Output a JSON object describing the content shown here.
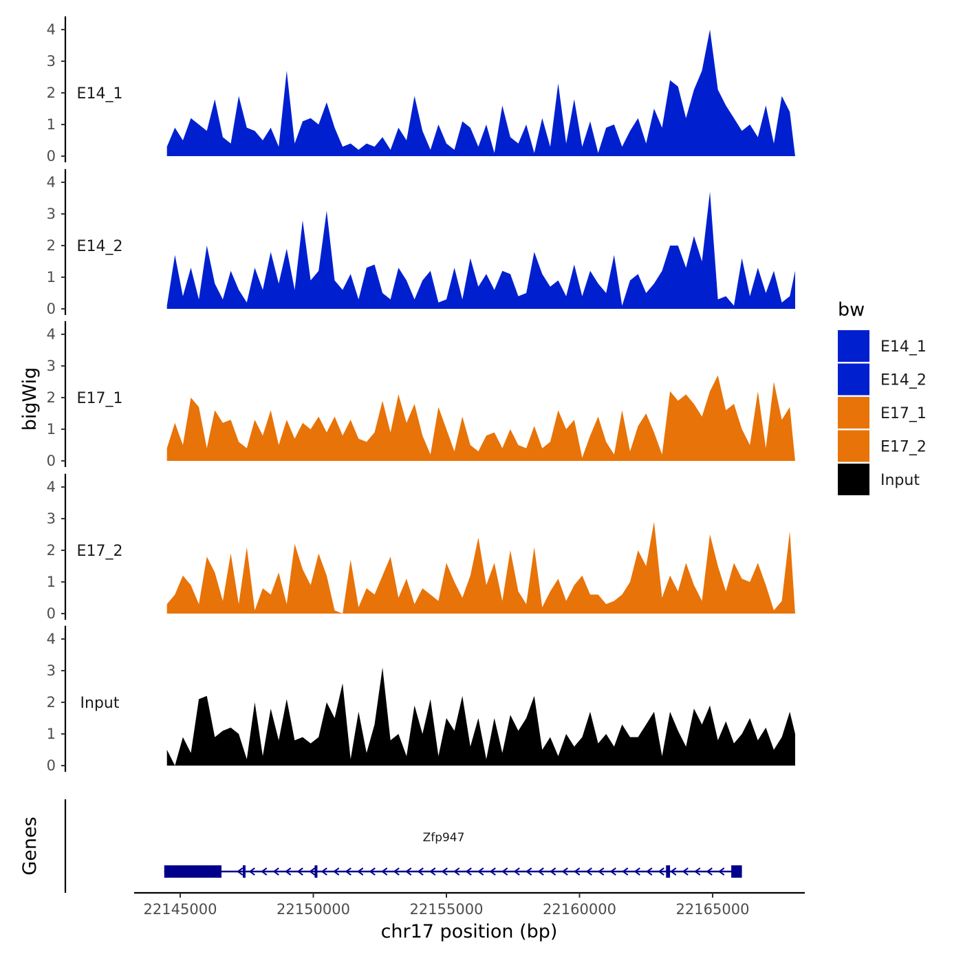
{
  "chart_data": {
    "type": "area",
    "ylabel": "bigWig",
    "xlabel": "chr17 position (bp)",
    "genes_label": "Genes",
    "xlim": [
      22143000,
      22169000
    ],
    "ylim": [
      0,
      4.2
    ],
    "xticks": [
      22145000,
      22150000,
      22155000,
      22160000,
      22165000
    ],
    "xtick_labels": [
      "22145000",
      "22150000",
      "22155000",
      "22160000",
      "22165000"
    ],
    "yticks": [
      0,
      1,
      2,
      3,
      4
    ],
    "ytick_labels": [
      "0",
      "1",
      "2",
      "3",
      "4"
    ],
    "legend": {
      "title": "bw",
      "position": "right",
      "entries": [
        {
          "label": "E14_1",
          "color": "#0020d0"
        },
        {
          "label": "E14_2",
          "color": "#0020d0"
        },
        {
          "label": "E17_1",
          "color": "#e87308"
        },
        {
          "label": "E17_2",
          "color": "#e87308"
        },
        {
          "label": "Input",
          "color": "#000000"
        }
      ]
    },
    "series": [
      {
        "name": "E14_1",
        "color": "#0020d0",
        "x": [
          22144500,
          22144800,
          22145100,
          22145400,
          22145700,
          22146000,
          22146300,
          22146600,
          22146900,
          22147200,
          22147500,
          22147800,
          22148100,
          22148400,
          22148700,
          22149000,
          22149300,
          22149600,
          22149900,
          22150200,
          22150500,
          22150800,
          22151100,
          22151400,
          22151700,
          22152000,
          22152300,
          22152600,
          22152900,
          22153200,
          22153500,
          22153800,
          22154100,
          22154400,
          22154700,
          22155000,
          22155300,
          22155600,
          22155900,
          22156200,
          22156500,
          22156800,
          22157100,
          22157400,
          22157700,
          22158000,
          22158300,
          22158600,
          22158900,
          22159200,
          22159500,
          22159800,
          22160100,
          22160400,
          22160700,
          22161000,
          22161300,
          22161600,
          22161900,
          22162200,
          22162500,
          22162800,
          22163100,
          22163400,
          22163700,
          22164000,
          22164300,
          22164600,
          22164900,
          22165200,
          22165500,
          22165800,
          22166100,
          22166400,
          22166700,
          22167000,
          22167300,
          22167600,
          22167900,
          22168100
        ],
        "values": [
          0.3,
          0.9,
          0.5,
          1.2,
          1.0,
          0.8,
          1.8,
          0.6,
          0.4,
          1.9,
          0.9,
          0.8,
          0.5,
          0.9,
          0.3,
          2.7,
          0.4,
          1.1,
          1.2,
          1.0,
          1.7,
          0.9,
          0.3,
          0.4,
          0.2,
          0.4,
          0.3,
          0.6,
          0.2,
          0.9,
          0.5,
          1.9,
          0.8,
          0.2,
          1.0,
          0.4,
          0.2,
          1.1,
          0.9,
          0.3,
          1.0,
          0.1,
          1.6,
          0.6,
          0.4,
          1.0,
          0.1,
          1.2,
          0.3,
          2.3,
          0.4,
          1.8,
          0.3,
          1.1,
          0.1,
          0.9,
          1.0,
          0.3,
          0.8,
          1.2,
          0.4,
          1.5,
          0.9,
          2.4,
          2.2,
          1.2,
          2.1,
          2.7,
          4.0,
          2.1,
          1.6,
          1.2,
          0.8,
          1.0,
          0.6,
          1.6,
          0.4,
          1.9,
          1.4,
          0.0
        ]
      },
      {
        "name": "E14_2",
        "color": "#0020d0",
        "x": [
          22144500,
          22144800,
          22145100,
          22145400,
          22145700,
          22146000,
          22146300,
          22146600,
          22146900,
          22147200,
          22147500,
          22147800,
          22148100,
          22148400,
          22148700,
          22149000,
          22149300,
          22149600,
          22149900,
          22150200,
          22150500,
          22150800,
          22151100,
          22151400,
          22151700,
          22152000,
          22152300,
          22152600,
          22152900,
          22153200,
          22153500,
          22153800,
          22154100,
          22154400,
          22154700,
          22155000,
          22155300,
          22155600,
          22155900,
          22156200,
          22156500,
          22156800,
          22157100,
          22157400,
          22157700,
          22158000,
          22158300,
          22158600,
          22158900,
          22159200,
          22159500,
          22159800,
          22160100,
          22160400,
          22160700,
          22161000,
          22161300,
          22161600,
          22161900,
          22162200,
          22162500,
          22162800,
          22163100,
          22163400,
          22163700,
          22164000,
          22164300,
          22164600,
          22164900,
          22165200,
          22165500,
          22165800,
          22166100,
          22166400,
          22166700,
          22167000,
          22167300,
          22167600,
          22167900,
          22168100
        ],
        "values": [
          0.1,
          1.7,
          0.4,
          1.3,
          0.3,
          2.0,
          0.8,
          0.3,
          1.2,
          0.6,
          0.2,
          1.3,
          0.6,
          1.8,
          0.8,
          1.9,
          0.6,
          2.8,
          0.9,
          1.2,
          3.1,
          0.9,
          0.6,
          1.1,
          0.3,
          1.3,
          1.4,
          0.5,
          0.3,
          1.3,
          0.9,
          0.3,
          0.9,
          1.2,
          0.2,
          0.3,
          1.3,
          0.3,
          1.6,
          0.7,
          1.1,
          0.6,
          1.2,
          1.1,
          0.4,
          0.5,
          1.8,
          1.1,
          0.7,
          0.9,
          0.4,
          1.4,
          0.4,
          1.2,
          0.8,
          0.5,
          1.7,
          0.1,
          0.9,
          1.1,
          0.5,
          0.8,
          1.2,
          2.0,
          2.0,
          1.3,
          2.3,
          1.5,
          3.7,
          0.3,
          0.4,
          0.1,
          1.6,
          0.4,
          1.3,
          0.5,
          1.2,
          0.2,
          0.4,
          1.2
        ]
      },
      {
        "name": "E17_1",
        "color": "#e87308",
        "x": [
          22144500,
          22144800,
          22145100,
          22145400,
          22145700,
          22146000,
          22146300,
          22146600,
          22146900,
          22147200,
          22147500,
          22147800,
          22148100,
          22148400,
          22148700,
          22149000,
          22149300,
          22149600,
          22149900,
          22150200,
          22150500,
          22150800,
          22151100,
          22151400,
          22151700,
          22152000,
          22152300,
          22152600,
          22152900,
          22153200,
          22153500,
          22153800,
          22154100,
          22154400,
          22154700,
          22155000,
          22155300,
          22155600,
          22155900,
          22156200,
          22156500,
          22156800,
          22157100,
          22157400,
          22157700,
          22158000,
          22158300,
          22158600,
          22158900,
          22159200,
          22159500,
          22159800,
          22160100,
          22160400,
          22160700,
          22161000,
          22161300,
          22161600,
          22161900,
          22162200,
          22162500,
          22162800,
          22163100,
          22163400,
          22163700,
          22164000,
          22164300,
          22164600,
          22164900,
          22165200,
          22165500,
          22165800,
          22166100,
          22166400,
          22166700,
          22167000,
          22167300,
          22167600,
          22167900,
          22168100
        ],
        "values": [
          0.4,
          1.2,
          0.5,
          2.0,
          1.7,
          0.4,
          1.6,
          1.2,
          1.3,
          0.6,
          0.4,
          1.3,
          0.8,
          1.6,
          0.5,
          1.3,
          0.7,
          1.2,
          1.0,
          1.4,
          0.9,
          1.4,
          0.8,
          1.3,
          0.7,
          0.6,
          0.9,
          1.9,
          0.9,
          2.1,
          1.2,
          1.8,
          0.8,
          0.2,
          1.7,
          1.0,
          0.3,
          1.4,
          0.5,
          0.3,
          0.8,
          0.9,
          0.4,
          1.0,
          0.5,
          0.4,
          1.1,
          0.4,
          0.6,
          1.6,
          1.0,
          1.3,
          0.1,
          0.8,
          1.4,
          0.6,
          0.2,
          1.6,
          0.3,
          1.1,
          1.5,
          0.9,
          0.2,
          2.2,
          1.9,
          2.1,
          1.8,
          1.4,
          2.2,
          2.7,
          1.6,
          1.8,
          1.0,
          0.5,
          2.2,
          0.4,
          2.5,
          1.3,
          1.7,
          0.0
        ]
      },
      {
        "name": "E17_2",
        "color": "#e87308",
        "x": [
          22144500,
          22144800,
          22145100,
          22145400,
          22145700,
          22146000,
          22146300,
          22146600,
          22146900,
          22147200,
          22147500,
          22147800,
          22148100,
          22148400,
          22148700,
          22149000,
          22149300,
          22149600,
          22149900,
          22150200,
          22150500,
          22150800,
          22151100,
          22151400,
          22151700,
          22152000,
          22152300,
          22152600,
          22152900,
          22153200,
          22153500,
          22153800,
          22154100,
          22154400,
          22154700,
          22155000,
          22155300,
          22155600,
          22155900,
          22156200,
          22156500,
          22156800,
          22157100,
          22157400,
          22157700,
          22158000,
          22158300,
          22158600,
          22158900,
          22159200,
          22159500,
          22159800,
          22160100,
          22160400,
          22160700,
          22161000,
          22161300,
          22161600,
          22161900,
          22162200,
          22162500,
          22162800,
          22163100,
          22163400,
          22163700,
          22164000,
          22164300,
          22164600,
          22164900,
          22165200,
          22165500,
          22165800,
          22166100,
          22166400,
          22166700,
          22167000,
          22167300,
          22167600,
          22167900,
          22168100
        ],
        "values": [
          0.3,
          0.6,
          1.2,
          0.9,
          0.3,
          1.8,
          1.3,
          0.4,
          1.9,
          0.3,
          2.1,
          0.1,
          0.8,
          0.6,
          1.3,
          0.3,
          2.2,
          1.4,
          0.9,
          1.9,
          1.2,
          0.1,
          0.0,
          1.7,
          0.2,
          0.8,
          0.6,
          1.2,
          1.8,
          0.5,
          1.1,
          0.3,
          0.8,
          0.6,
          0.4,
          1.6,
          1.0,
          0.5,
          1.2,
          2.4,
          0.9,
          1.6,
          0.4,
          2.0,
          0.7,
          0.3,
          2.1,
          0.2,
          0.7,
          1.1,
          0.4,
          0.9,
          1.2,
          0.6,
          0.6,
          0.3,
          0.4,
          0.6,
          1.0,
          2.0,
          1.5,
          2.9,
          0.5,
          1.2,
          0.7,
          1.6,
          0.9,
          0.4,
          2.5,
          1.5,
          0.7,
          1.6,
          1.1,
          1.0,
          1.6,
          0.9,
          0.1,
          0.4,
          2.6,
          0.0
        ]
      },
      {
        "name": "Input",
        "color": "#000000",
        "x": [
          22144500,
          22144800,
          22145100,
          22145400,
          22145700,
          22146000,
          22146300,
          22146600,
          22146900,
          22147200,
          22147500,
          22147800,
          22148100,
          22148400,
          22148700,
          22149000,
          22149300,
          22149600,
          22149900,
          22150200,
          22150500,
          22150800,
          22151100,
          22151400,
          22151700,
          22152000,
          22152300,
          22152600,
          22152900,
          22153200,
          22153500,
          22153800,
          22154100,
          22154400,
          22154700,
          22155000,
          22155300,
          22155600,
          22155900,
          22156200,
          22156500,
          22156800,
          22157100,
          22157400,
          22157700,
          22158000,
          22158300,
          22158600,
          22158900,
          22159200,
          22159500,
          22159800,
          22160100,
          22160400,
          22160700,
          22161000,
          22161300,
          22161600,
          22161900,
          22162200,
          22162500,
          22162800,
          22163100,
          22163400,
          22163700,
          22164000,
          22164300,
          22164600,
          22164900,
          22165200,
          22165500,
          22165800,
          22166100,
          22166400,
          22166700,
          22167000,
          22167300,
          22167600,
          22167900,
          22168100
        ],
        "values": [
          0.5,
          0.0,
          0.9,
          0.4,
          2.1,
          2.2,
          0.9,
          1.1,
          1.2,
          1.0,
          0.2,
          2.0,
          0.3,
          1.8,
          0.8,
          2.1,
          0.8,
          0.9,
          0.7,
          0.9,
          2.0,
          1.5,
          2.6,
          0.2,
          1.7,
          0.4,
          1.3,
          3.1,
          0.8,
          1.0,
          0.3,
          1.9,
          1.0,
          2.1,
          0.3,
          1.5,
          1.1,
          2.2,
          0.6,
          1.5,
          0.2,
          1.5,
          0.4,
          1.6,
          1.1,
          1.5,
          2.2,
          0.5,
          0.9,
          0.3,
          1.0,
          0.6,
          0.9,
          1.7,
          0.7,
          1.0,
          0.6,
          1.3,
          0.9,
          0.9,
          1.3,
          1.7,
          0.3,
          1.7,
          1.1,
          0.6,
          1.8,
          1.3,
          1.9,
          0.8,
          1.4,
          0.7,
          1.0,
          1.5,
          0.8,
          1.2,
          0.5,
          0.9,
          1.7,
          1.0
        ]
      }
    ],
    "genes": [
      {
        "name": "Zfp947",
        "color": "#00008b",
        "strand": "-",
        "start": 22144400,
        "end": 22166100,
        "exons": [
          [
            22144400,
            22146550
          ],
          [
            22147350,
            22147450
          ],
          [
            22150050,
            22150080
          ],
          [
            22163250,
            22163400
          ],
          [
            22165700,
            22166100
          ]
        ]
      }
    ]
  }
}
